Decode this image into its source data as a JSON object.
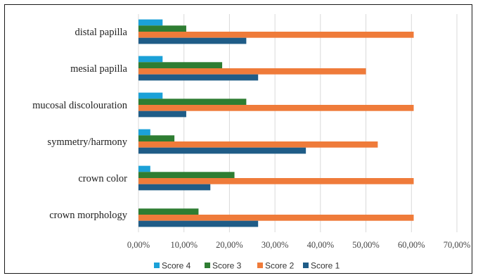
{
  "chart_data": {
    "type": "bar",
    "orientation": "horizontal",
    "categories": [
      "distal papilla",
      "mesial papilla",
      "mucosal discolouration",
      "symmetry/harmony",
      "crown color",
      "crown morphology"
    ],
    "series": [
      {
        "name": "Score 4",
        "color": "#1ba1d8",
        "values": [
          5.3,
          5.3,
          5.3,
          2.6,
          2.6,
          0
        ]
      },
      {
        "name": "Score 3",
        "color": "#2e7d32",
        "values": [
          10.5,
          18.4,
          23.7,
          7.9,
          21.1,
          13.2
        ]
      },
      {
        "name": "Score 2",
        "color": "#ef7b3a",
        "values": [
          60.5,
          50.0,
          60.5,
          52.6,
          60.5,
          60.5
        ]
      },
      {
        "name": "Score 1",
        "color": "#1f5c87",
        "values": [
          23.7,
          26.3,
          10.5,
          36.8,
          15.8,
          26.3
        ]
      }
    ],
    "xlim": [
      0,
      70
    ],
    "x_ticks": [
      "0,00%",
      "10,00%",
      "20,00%",
      "30,00%",
      "40,00%",
      "50,00%",
      "60,00%",
      "70,00%"
    ],
    "grid": true,
    "legend_position": "bottom"
  }
}
